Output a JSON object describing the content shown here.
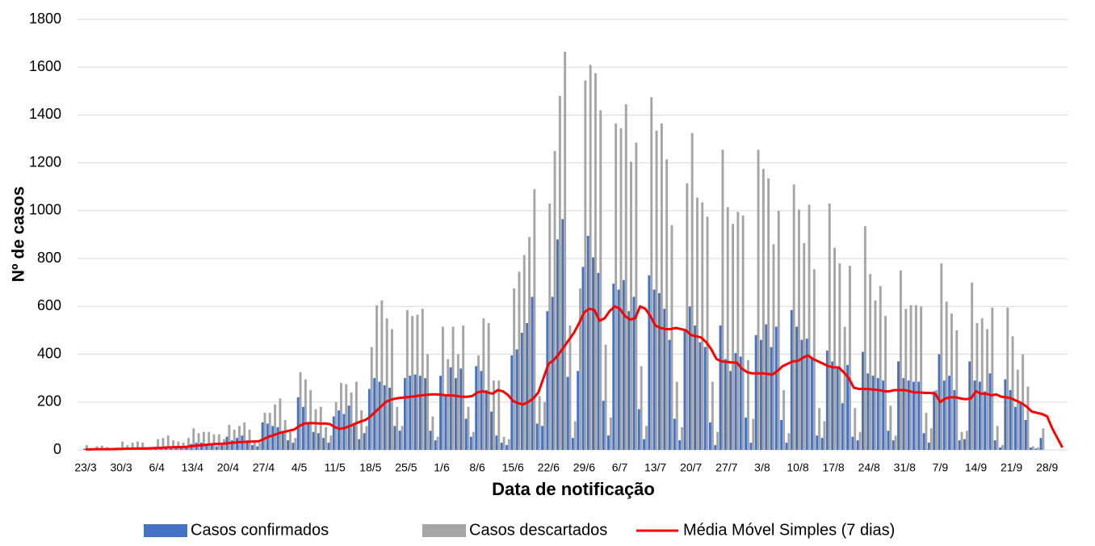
{
  "chart_data": {
    "type": "bar",
    "y_label": "Nº de casos",
    "x_label": "Data de notificação",
    "categories": [
      "23/3",
      null,
      null,
      null,
      null,
      null,
      null,
      "30/3",
      null,
      null,
      null,
      null,
      null,
      null,
      "6/4",
      null,
      null,
      null,
      null,
      null,
      null,
      "13/4",
      null,
      null,
      null,
      null,
      null,
      null,
      "20/4",
      null,
      null,
      null,
      null,
      null,
      null,
      "27/4",
      null,
      null,
      null,
      null,
      null,
      null,
      "4/5",
      null,
      null,
      null,
      null,
      null,
      null,
      "11/5",
      null,
      null,
      null,
      null,
      null,
      null,
      "18/5",
      null,
      null,
      null,
      null,
      null,
      null,
      "25/5",
      null,
      null,
      null,
      null,
      null,
      null,
      "1/6",
      null,
      null,
      null,
      null,
      null,
      null,
      "8/6",
      null,
      null,
      null,
      null,
      null,
      null,
      "15/6",
      null,
      null,
      null,
      null,
      null,
      null,
      "22/6",
      null,
      null,
      null,
      null,
      null,
      null,
      "29/6",
      null,
      null,
      null,
      null,
      null,
      null,
      "6/7",
      null,
      null,
      null,
      null,
      null,
      null,
      "13/7",
      null,
      null,
      null,
      null,
      null,
      null,
      "20/7",
      null,
      null,
      null,
      null,
      null,
      null,
      "27/7",
      null,
      null,
      null,
      null,
      null,
      null,
      "3/8",
      null,
      null,
      null,
      null,
      null,
      null,
      "10/8",
      null,
      null,
      null,
      null,
      null,
      null,
      "17/8",
      null,
      null,
      null,
      null,
      null,
      null,
      "24/8",
      null,
      null,
      null,
      null,
      null,
      null,
      "31/8",
      null,
      null,
      null,
      null,
      null,
      null,
      "7/9",
      null,
      null,
      null,
      null,
      null,
      null,
      "14/9",
      null,
      null,
      null,
      null,
      null,
      null,
      "21/9",
      null,
      null,
      null,
      null,
      null,
      null,
      "28/9",
      null,
      null,
      null
    ],
    "series": [
      {
        "name": "Casos confirmados",
        "color": "#4472c4",
        "kind": "bar",
        "values": [
          5,
          2,
          3,
          3,
          2,
          5,
          4,
          5,
          8,
          5,
          10,
          8,
          3,
          5,
          10,
          12,
          15,
          12,
          10,
          8,
          10,
          25,
          30,
          30,
          25,
          20,
          15,
          20,
          55,
          40,
          50,
          60,
          40,
          20,
          15,
          115,
          110,
          100,
          95,
          80,
          40,
          30,
          220,
          180,
          110,
          75,
          70,
          50,
          30,
          140,
          165,
          150,
          185,
          110,
          45,
          70,
          255,
          300,
          285,
          270,
          260,
          100,
          80,
          300,
          310,
          315,
          310,
          300,
          80,
          40,
          310,
          230,
          345,
          300,
          340,
          130,
          55,
          350,
          330,
          250,
          160,
          60,
          30,
          20,
          395,
          420,
          490,
          530,
          640,
          110,
          100,
          580,
          640,
          880,
          965,
          305,
          50,
          330,
          765,
          895,
          805,
          740,
          205,
          60,
          695,
          670,
          710,
          580,
          640,
          170,
          45,
          730,
          670,
          655,
          590,
          460,
          130,
          40,
          500,
          600,
          520,
          450,
          430,
          115,
          20,
          520,
          380,
          330,
          405,
          390,
          135,
          30,
          480,
          460,
          525,
          430,
          515,
          125,
          30,
          585,
          515,
          460,
          465,
          385,
          60,
          50,
          415,
          370,
          350,
          195,
          355,
          55,
          40,
          410,
          320,
          310,
          300,
          290,
          80,
          40,
          370,
          300,
          290,
          285,
          285,
          70,
          30,
          245,
          400,
          290,
          310,
          250,
          40,
          45,
          370,
          290,
          285,
          245,
          320,
          40,
          10,
          295,
          250,
          180,
          200,
          125,
          10,
          5,
          50,
          0,
          0,
          0,
          0
        ]
      },
      {
        "name": "Casos descartados",
        "color": "#a5a5a5",
        "kind": "bar",
        "values": [
          20,
          5,
          15,
          18,
          12,
          8,
          10,
          35,
          20,
          30,
          35,
          30,
          10,
          10,
          45,
          50,
          60,
          40,
          35,
          30,
          50,
          90,
          70,
          75,
          75,
          65,
          65,
          45,
          105,
          85,
          100,
          115,
          85,
          40,
          30,
          155,
          155,
          190,
          215,
          125,
          75,
          50,
          325,
          295,
          250,
          170,
          180,
          95,
          60,
          200,
          280,
          275,
          240,
          285,
          165,
          100,
          430,
          605,
          625,
          550,
          505,
          180,
          100,
          585,
          560,
          565,
          590,
          400,
          140,
          55,
          515,
          380,
          515,
          400,
          520,
          180,
          75,
          395,
          550,
          530,
          290,
          290,
          55,
          45,
          675,
          745,
          815,
          890,
          1090,
          225,
          200,
          1030,
          1250,
          1480,
          1665,
          520,
          120,
          675,
          1545,
          1610,
          1575,
          1420,
          440,
          135,
          1365,
          1345,
          1445,
          1205,
          1285,
          350,
          100,
          1475,
          1335,
          1365,
          1215,
          940,
          285,
          95,
          1115,
          1325,
          1055,
          1035,
          975,
          285,
          75,
          1255,
          1015,
          945,
          995,
          980,
          375,
          130,
          1255,
          1175,
          1135,
          860,
          1000,
          250,
          70,
          1110,
          1005,
          865,
          1025,
          755,
          175,
          120,
          1030,
          845,
          780,
          515,
          770,
          175,
          75,
          935,
          735,
          625,
          685,
          560,
          185,
          60,
          750,
          590,
          605,
          605,
          600,
          155,
          90,
          250,
          780,
          620,
          570,
          500,
          75,
          80,
          700,
          530,
          550,
          505,
          595,
          100,
          20,
          595,
          475,
          335,
          400,
          265,
          15,
          10,
          90,
          0,
          0,
          0,
          0
        ]
      },
      {
        "name": "Média Móvel Simples (7 dias)",
        "color": "#ff0000",
        "kind": "line",
        "values": [
          2,
          2,
          3,
          3,
          3,
          3,
          4,
          4,
          5,
          5,
          6,
          6,
          6,
          7,
          8,
          9,
          10,
          11,
          12,
          12,
          13,
          16,
          18,
          20,
          22,
          24,
          25,
          26,
          28,
          30,
          32,
          33,
          34,
          35,
          36,
          45,
          55,
          62,
          70,
          75,
          80,
          85,
          100,
          110,
          112,
          112,
          110,
          110,
          108,
          95,
          88,
          92,
          100,
          110,
          118,
          125,
          140,
          160,
          180,
          200,
          210,
          215,
          218,
          220,
          222,
          225,
          228,
          230,
          232,
          232,
          230,
          228,
          228,
          225,
          222,
          222,
          225,
          240,
          245,
          240,
          235,
          250,
          245,
          230,
          205,
          195,
          190,
          200,
          215,
          240,
          300,
          360,
          375,
          400,
          430,
          460,
          490,
          530,
          575,
          590,
          585,
          540,
          550,
          580,
          600,
          590,
          560,
          545,
          550,
          600,
          590,
          560,
          520,
          510,
          505,
          505,
          510,
          505,
          500,
          480,
          475,
          470,
          450,
          420,
          380,
          370,
          368,
          365,
          365,
          340,
          325,
          320,
          320,
          320,
          318,
          315,
          330,
          350,
          360,
          370,
          372,
          385,
          395,
          380,
          370,
          360,
          350,
          345,
          345,
          325,
          300,
          260,
          255,
          255,
          254,
          252,
          250,
          245,
          245,
          250,
          250,
          250,
          245,
          240,
          240,
          238,
          238,
          235,
          200,
          215,
          220,
          220,
          215,
          212,
          215,
          245,
          235,
          235,
          228,
          232,
          222,
          220,
          215,
          205,
          195,
          180,
          160,
          155,
          150,
          140,
          90,
          50,
          10
        ]
      }
    ],
    "ylim": [
      0,
      1800
    ],
    "yticks": [
      0,
      200,
      400,
      600,
      800,
      1000,
      1200,
      1400,
      1600,
      1800
    ],
    "grid": true
  }
}
